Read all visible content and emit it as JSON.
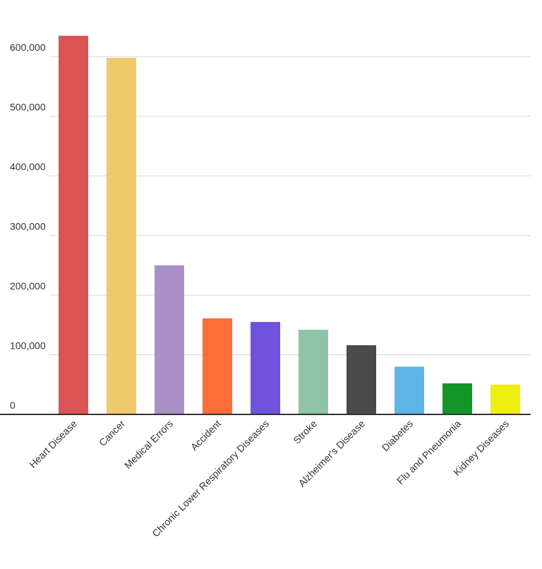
{
  "chart_data": {
    "type": "bar",
    "categories": [
      "Heart Disease",
      "Cancer",
      "Medical Errors",
      "Accident",
      "Chronic Lower Respiratory Diseases",
      "Stroke",
      "Alzheimer's Disease",
      "Diabetes",
      "Flu and Pneumonia",
      "Kidney Diseases"
    ],
    "values": [
      635000,
      598000,
      250000,
      161000,
      155000,
      142000,
      116000,
      80000,
      52000,
      50000
    ],
    "colors": [
      "#dc5356",
      "#eeca6a",
      "#a991c8",
      "#fe6d3a",
      "#6f52dd",
      "#8ec3a7",
      "#4a4a4a",
      "#5eb5e6",
      "#149528",
      "#eeee11"
    ],
    "ylim": [
      0,
      650000
    ],
    "yticks": [
      0,
      {
        "value": 100000,
        "label": "100,000"
      },
      {
        "value": 200000,
        "label": "200,000"
      },
      {
        "value": 300000,
        "label": "300,000"
      },
      {
        "value": 400000,
        "label": "400,000"
      },
      {
        "value": 500000,
        "label": "500,000"
      },
      {
        "value": 600000,
        "label": "600,000"
      }
    ],
    "grid": true
  }
}
